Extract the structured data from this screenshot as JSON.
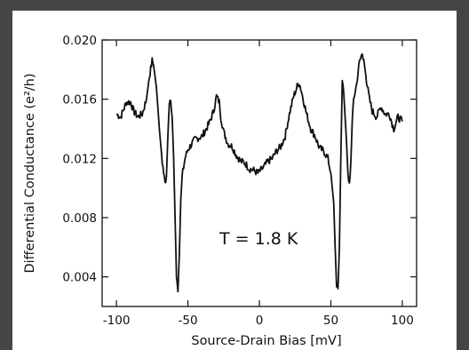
{
  "chart_data": {
    "type": "line",
    "xlabel": "Source-Drain Bias [mV]",
    "ylabel": "Differential Conductance (e²/h)",
    "xlim": [
      -110,
      110
    ],
    "ylim": [
      0.002,
      0.02
    ],
    "xticks": [
      "-100",
      "-50",
      "0",
      "50",
      "100"
    ],
    "yticks": [
      "0.004",
      "0.008",
      "0.012",
      "0.016",
      "0.020"
    ],
    "annotation": "T = 1.8 K",
    "grid": false,
    "series": [
      {
        "x": [
          -100,
          -97,
          -93,
          -90,
          -88,
          -85,
          -82,
          -79,
          -77,
          -75,
          -74,
          -72,
          -70,
          -68,
          -66,
          -65,
          -64,
          -63,
          -62,
          -61,
          -60,
          -59,
          -58,
          -57,
          -56,
          -55,
          -54,
          -52,
          -50,
          -45,
          -40,
          -35,
          -32,
          -30,
          -28,
          -27,
          -25,
          -22,
          -19,
          -16,
          -13,
          -10,
          -7,
          -4,
          -1,
          0,
          3,
          6,
          9,
          12,
          15,
          18,
          21,
          24,
          27,
          28,
          30,
          33,
          36,
          39,
          42,
          45,
          48,
          50,
          52,
          53,
          54,
          55,
          56,
          57,
          58,
          59,
          60,
          61,
          62,
          63,
          64,
          65,
          66,
          68,
          70,
          72,
          73,
          75,
          77,
          79,
          82,
          85,
          88,
          91,
          94,
          97,
          100
        ],
        "values": [
          0.015,
          0.0148,
          0.0158,
          0.0158,
          0.0152,
          0.0148,
          0.015,
          0.016,
          0.0175,
          0.0186,
          0.0183,
          0.0168,
          0.014,
          0.0118,
          0.0103,
          0.0108,
          0.0135,
          0.0158,
          0.0161,
          0.0148,
          0.012,
          0.008,
          0.004,
          0.003,
          0.0055,
          0.0092,
          0.0108,
          0.012,
          0.0126,
          0.0133,
          0.0135,
          0.0144,
          0.0152,
          0.0162,
          0.0158,
          0.0148,
          0.0138,
          0.013,
          0.0128,
          0.0122,
          0.0118,
          0.0117,
          0.0113,
          0.0112,
          0.011,
          0.0111,
          0.0114,
          0.0118,
          0.012,
          0.0125,
          0.0128,
          0.0135,
          0.015,
          0.0162,
          0.017,
          0.0171,
          0.0163,
          0.015,
          0.014,
          0.0135,
          0.0127,
          0.0125,
          0.012,
          0.011,
          0.009,
          0.006,
          0.0035,
          0.0032,
          0.006,
          0.012,
          0.0172,
          0.0165,
          0.0148,
          0.013,
          0.0108,
          0.0103,
          0.0118,
          0.0145,
          0.016,
          0.017,
          0.0185,
          0.0191,
          0.0187,
          0.0172,
          0.016,
          0.0152,
          0.0148,
          0.0155,
          0.015,
          0.015,
          0.014,
          0.0148,
          0.0145
        ]
      }
    ]
  }
}
